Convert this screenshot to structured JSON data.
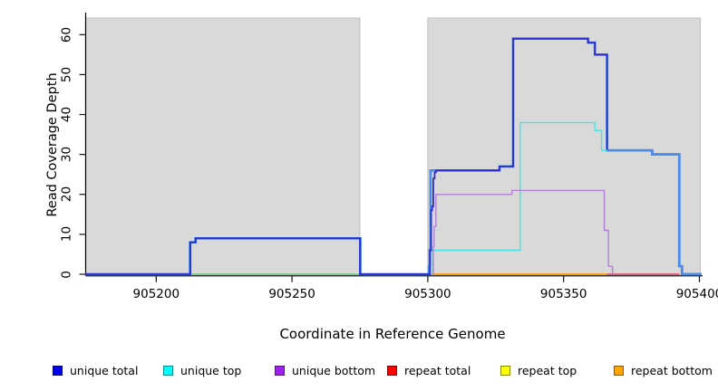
{
  "y_axis": {
    "label": "Read Coverage Depth",
    "ticks": [
      "0",
      "10",
      "20",
      "30",
      "40",
      "50",
      "60"
    ],
    "tick_values": [
      0,
      10,
      20,
      30,
      40,
      50,
      60
    ]
  },
  "x_axis": {
    "label": "Coordinate in Reference Genome",
    "ticks": [
      "905200",
      "905250",
      "905300",
      "905350",
      "905400"
    ],
    "tick_values": [
      905200,
      905250,
      905300,
      905350,
      905400
    ],
    "last_label_clipped": "90540"
  },
  "legend": [
    {
      "label": "unique total",
      "color": "#0000ee"
    },
    {
      "label": "unique top",
      "color": "#00ffff"
    },
    {
      "label": "unique bottom",
      "color": "#a020f0"
    },
    {
      "label": "repeat total",
      "color": "#ff0000"
    },
    {
      "label": "repeat top",
      "color": "#ffff00"
    },
    {
      "label": "repeat bottom",
      "color": "#ffa500"
    }
  ],
  "chart_data": {
    "type": "line",
    "subtype": "step-coverage",
    "title": "",
    "xlabel": "Coordinate in Reference Genome",
    "ylabel": "Read Coverage Depth",
    "x_range": [
      905174,
      905401
    ],
    "y_range": [
      0,
      64
    ],
    "grid": false,
    "legend_position": "bottom",
    "background_regions": [
      {
        "name": "unique-region-left",
        "x1": 905174,
        "x2": 905275,
        "color": "#d9d9d9",
        "edge": "#bdbdbd"
      },
      {
        "name": "unique-region-right",
        "x1": 905300,
        "x2": 905400.3,
        "color": "#d9d9d9",
        "edge": "#bdbdbd"
      },
      {
        "name": "repeat-gap-white",
        "x1": 905275,
        "x2": 905300,
        "color": "#ffffff"
      }
    ],
    "series": [
      {
        "name": "repeat top (at zero, hidden under repeat bottom)",
        "color": "#ffff00",
        "width": 1.0,
        "points": [
          [
            905301,
            0
          ],
          [
            905366,
            0
          ]
        ]
      },
      {
        "name": "baseline blend under left plateau (cyan+yellow overlap renders green)",
        "color": "#6fc983",
        "width": 1.4,
        "points": [
          [
            905213,
            0
          ],
          [
            905275,
            0
          ]
        ]
      },
      {
        "name": "repeat bottom",
        "color": "#ff9d00",
        "width": 1.7,
        "points": [
          [
            905301,
            0
          ],
          [
            905366,
            0
          ]
        ]
      },
      {
        "name": "repeat total",
        "color": "#e0506e",
        "width": 1.7,
        "points": [
          [
            905366,
            0
          ],
          [
            905392.6,
            0
          ]
        ]
      },
      {
        "name": "total (unlabeled light-blue line)",
        "color": "#4d8be8",
        "width": 2.7,
        "overlay_from": 905366,
        "points": [
          [
            905174,
            0
          ],
          [
            905212.4,
            8
          ],
          [
            905214.5,
            9
          ],
          [
            905275.2,
            0
          ],
          [
            905300.4,
            2
          ],
          [
            905300.7,
            6
          ],
          [
            905301,
            26
          ],
          [
            905326.4,
            27
          ],
          [
            905331.4,
            59
          ],
          [
            905359,
            58
          ],
          [
            905361.5,
            55
          ],
          [
            905366,
            31
          ],
          [
            905382.6,
            30
          ],
          [
            905392.6,
            2
          ],
          [
            905393.6,
            0
          ],
          [
            905400.8,
            0
          ]
        ]
      },
      {
        "name": "unique total",
        "color": "#2a2ad2",
        "width": 1.8,
        "points": [
          [
            905174,
            0
          ],
          [
            905212.6,
            8
          ],
          [
            905214.5,
            9
          ],
          [
            905275,
            0
          ],
          [
            905300.8,
            6
          ],
          [
            905301.2,
            16
          ],
          [
            905301.6,
            17
          ],
          [
            905302,
            24
          ],
          [
            905302.5,
            25.5
          ],
          [
            905303,
            26
          ],
          [
            905326.4,
            27
          ],
          [
            905331.4,
            59
          ],
          [
            905359,
            58
          ],
          [
            905361.5,
            55
          ],
          [
            905366,
            31
          ]
        ]
      },
      {
        "name": "unique top",
        "color": "#45e2e2",
        "width": 1.4,
        "points": [
          [
            905301.5,
            0
          ],
          [
            905301.8,
            6
          ],
          [
            905334,
            38
          ],
          [
            905361.5,
            36
          ],
          [
            905364,
            31
          ],
          [
            905366,
            31
          ]
        ]
      },
      {
        "name": "unique bottom",
        "color": "#b47fd9",
        "width": 1.4,
        "points": [
          [
            905301.6,
            0
          ],
          [
            905302,
            7
          ],
          [
            905302.3,
            12
          ],
          [
            905303,
            20
          ],
          [
            905331,
            21
          ],
          [
            905365,
            11
          ],
          [
            905366.5,
            2
          ],
          [
            905368,
            0
          ]
        ]
      }
    ]
  }
}
